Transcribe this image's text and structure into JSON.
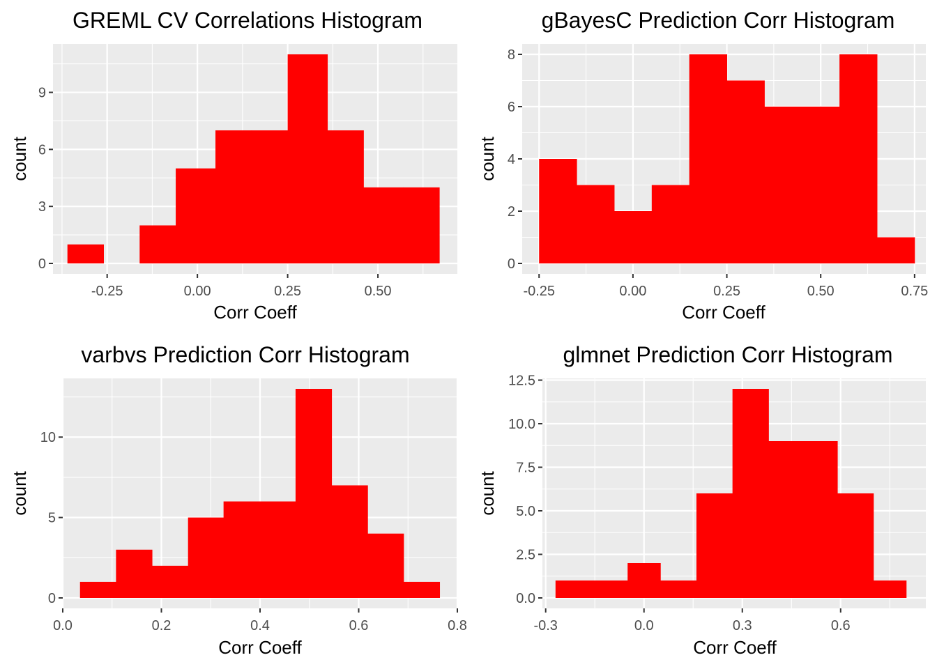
{
  "colors": {
    "bar": "#ff0000",
    "panel": "#ebebeb",
    "grid": "#ffffff"
  },
  "chart_data": [
    {
      "type": "bar",
      "title": "GREML CV Correlations Histogram",
      "xlabel": "Corr Coeff",
      "ylabel": "count",
      "xlim": [
        -0.4,
        0.72
      ],
      "ylim": [
        -0.55,
        11.55
      ],
      "x_ticks": [
        -0.25,
        0.0,
        0.25,
        0.5
      ],
      "x_tick_labels": [
        "-0.25",
        "0.00",
        "0.25",
        "0.50"
      ],
      "y_ticks": [
        0,
        3,
        6,
        9
      ],
      "y_tick_labels": [
        "0",
        "3",
        "6",
        "9"
      ],
      "bins": [
        {
          "x0": -0.36,
          "x1": -0.26,
          "count": 1
        },
        {
          "x0": -0.26,
          "x1": -0.16,
          "count": 0
        },
        {
          "x0": -0.16,
          "x1": -0.06,
          "count": 2
        },
        {
          "x0": -0.06,
          "x1": 0.05,
          "count": 5
        },
        {
          "x0": 0.05,
          "x1": 0.15,
          "count": 7
        },
        {
          "x0": 0.15,
          "x1": 0.25,
          "count": 7
        },
        {
          "x0": 0.25,
          "x1": 0.36,
          "count": 11
        },
        {
          "x0": 0.36,
          "x1": 0.46,
          "count": 7
        },
        {
          "x0": 0.46,
          "x1": 0.57,
          "count": 4
        },
        {
          "x0": 0.57,
          "x1": 0.67,
          "count": 4
        }
      ]
    },
    {
      "type": "bar",
      "title": "gBayesC Prediction Corr Histogram",
      "xlabel": "Corr Coeff",
      "ylabel": "count",
      "xlim": [
        -0.295,
        0.78
      ],
      "ylim": [
        -0.4,
        8.4
      ],
      "x_ticks": [
        -0.25,
        0.0,
        0.25,
        0.5,
        0.75
      ],
      "x_tick_labels": [
        "-0.25",
        "0.00",
        "0.25",
        "0.50",
        "0.75"
      ],
      "y_ticks": [
        0,
        2,
        4,
        6,
        8
      ],
      "y_tick_labels": [
        "0",
        "2",
        "4",
        "6",
        "8"
      ],
      "bins": [
        {
          "x0": -0.25,
          "x1": -0.15,
          "count": 4
        },
        {
          "x0": -0.15,
          "x1": -0.05,
          "count": 3
        },
        {
          "x0": -0.05,
          "x1": 0.05,
          "count": 2
        },
        {
          "x0": 0.05,
          "x1": 0.15,
          "count": 3
        },
        {
          "x0": 0.15,
          "x1": 0.25,
          "count": 8
        },
        {
          "x0": 0.25,
          "x1": 0.35,
          "count": 7
        },
        {
          "x0": 0.35,
          "x1": 0.45,
          "count": 6
        },
        {
          "x0": 0.45,
          "x1": 0.55,
          "count": 6
        },
        {
          "x0": 0.55,
          "x1": 0.65,
          "count": 8
        },
        {
          "x0": 0.65,
          "x1": 0.75,
          "count": 1
        }
      ]
    },
    {
      "type": "bar",
      "title": "varbvs Prediction Corr Histogram",
      "xlabel": "Corr Coeff",
      "ylabel": "count",
      "xlim": [
        0.0,
        0.8
      ],
      "ylim": [
        -0.65,
        13.65
      ],
      "x_ticks": [
        0.0,
        0.2,
        0.4,
        0.6,
        0.8
      ],
      "x_tick_labels": [
        "0.0",
        "0.2",
        "0.4",
        "0.6",
        "0.8"
      ],
      "y_ticks": [
        0,
        5,
        10
      ],
      "y_tick_labels": [
        "0",
        "5",
        "10"
      ],
      "bins": [
        {
          "x0": 0.035,
          "x1": 0.108,
          "count": 1
        },
        {
          "x0": 0.108,
          "x1": 0.181,
          "count": 3
        },
        {
          "x0": 0.181,
          "x1": 0.254,
          "count": 2
        },
        {
          "x0": 0.254,
          "x1": 0.326,
          "count": 5
        },
        {
          "x0": 0.326,
          "x1": 0.399,
          "count": 6
        },
        {
          "x0": 0.399,
          "x1": 0.472,
          "count": 6
        },
        {
          "x0": 0.472,
          "x1": 0.545,
          "count": 13
        },
        {
          "x0": 0.545,
          "x1": 0.618,
          "count": 7
        },
        {
          "x0": 0.618,
          "x1": 0.691,
          "count": 4
        },
        {
          "x0": 0.691,
          "x1": 0.764,
          "count": 1
        }
      ]
    },
    {
      "type": "bar",
      "title": "glmnet Prediction Corr Histogram",
      "xlabel": "Corr Coeff",
      "ylabel": "count",
      "xlim": [
        -0.31,
        0.86
      ],
      "ylim": [
        -0.6,
        12.6
      ],
      "x_ticks": [
        -0.3,
        0.0,
        0.3,
        0.6
      ],
      "x_tick_labels": [
        "-0.3",
        "0.0",
        "0.3",
        "0.6"
      ],
      "y_ticks": [
        0,
        2.5,
        5,
        7.5,
        10,
        12.5
      ],
      "y_tick_labels": [
        "0.0",
        "2.5",
        "5.0",
        "7.5",
        "10.0",
        "12.5"
      ],
      "bins": [
        {
          "x0": -0.27,
          "x1": -0.16,
          "count": 1
        },
        {
          "x0": -0.16,
          "x1": -0.05,
          "count": 1
        },
        {
          "x0": -0.05,
          "x1": 0.05,
          "count": 2
        },
        {
          "x0": 0.05,
          "x1": 0.16,
          "count": 1
        },
        {
          "x0": 0.16,
          "x1": 0.27,
          "count": 6
        },
        {
          "x0": 0.27,
          "x1": 0.38,
          "count": 12
        },
        {
          "x0": 0.38,
          "x1": 0.48,
          "count": 9
        },
        {
          "x0": 0.48,
          "x1": 0.59,
          "count": 9
        },
        {
          "x0": 0.59,
          "x1": 0.7,
          "count": 6
        },
        {
          "x0": 0.7,
          "x1": 0.8,
          "count": 1
        }
      ]
    }
  ]
}
